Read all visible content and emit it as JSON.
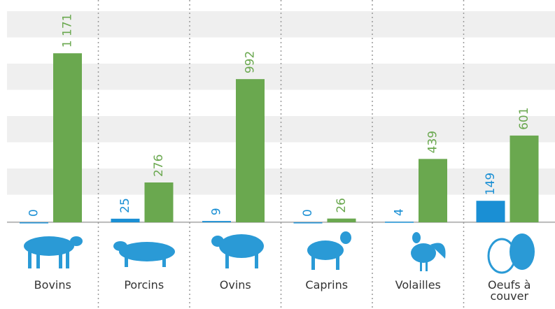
{
  "chart_data": {
    "type": "bar",
    "categories": [
      "Bovins",
      "Porcins",
      "Ovins",
      "Caprins",
      "Volailles",
      "Oeufs à couver"
    ],
    "series": [
      {
        "color": "#1a8fd4",
        "values": [
          0,
          25,
          9,
          0,
          4,
          149
        ],
        "value_labels": [
          "0",
          "25",
          "9",
          "0",
          "4",
          "149"
        ]
      },
      {
        "color": "#6aa84f",
        "values": [
          1171,
          276,
          992,
          26,
          439,
          601
        ],
        "value_labels": [
          "1 171",
          "276",
          "992",
          "26",
          "439",
          "601"
        ]
      }
    ],
    "ylim": [
      0,
      1540
    ],
    "grid": true
  }
}
